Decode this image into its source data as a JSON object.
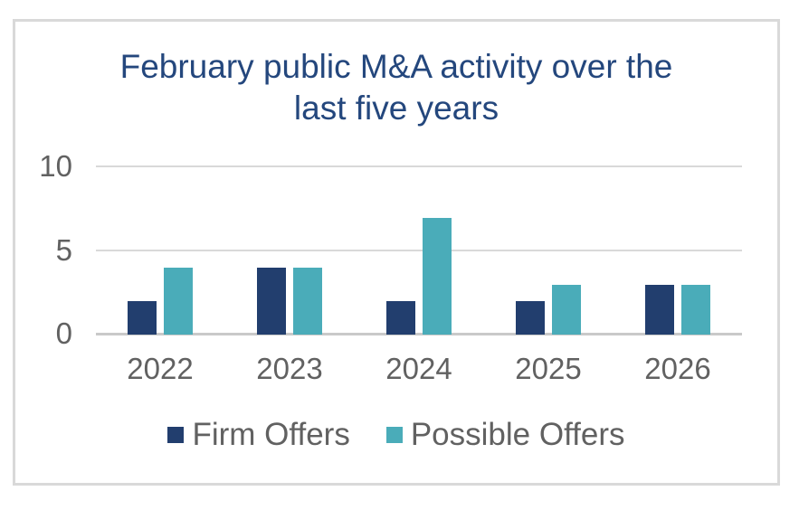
{
  "chart_data": {
    "type": "bar",
    "title": "February public M&A activity over the last five years",
    "categories": [
      "2022",
      "2023",
      "2024",
      "2025",
      "2026"
    ],
    "series": [
      {
        "name": "Firm Offers",
        "color": "#223e6e",
        "values": [
          2,
          4,
          2,
          2,
          3
        ]
      },
      {
        "name": "Possible Offers",
        "color": "#4aacb9",
        "values": [
          4,
          4,
          7,
          3,
          3
        ]
      }
    ],
    "xlabel": "",
    "ylabel": "",
    "ylim": [
      0,
      10
    ],
    "yticks": [
      0,
      5,
      10
    ],
    "grid": "horizontal",
    "legend_position": "bottom"
  },
  "colors": {
    "title_text": "#24477d",
    "axis_text": "#616161",
    "gridline": "#d9d9d9",
    "axis_line": "#c9c9c9",
    "frame_border": "#d9d9d9",
    "background": "#ffffff"
  }
}
